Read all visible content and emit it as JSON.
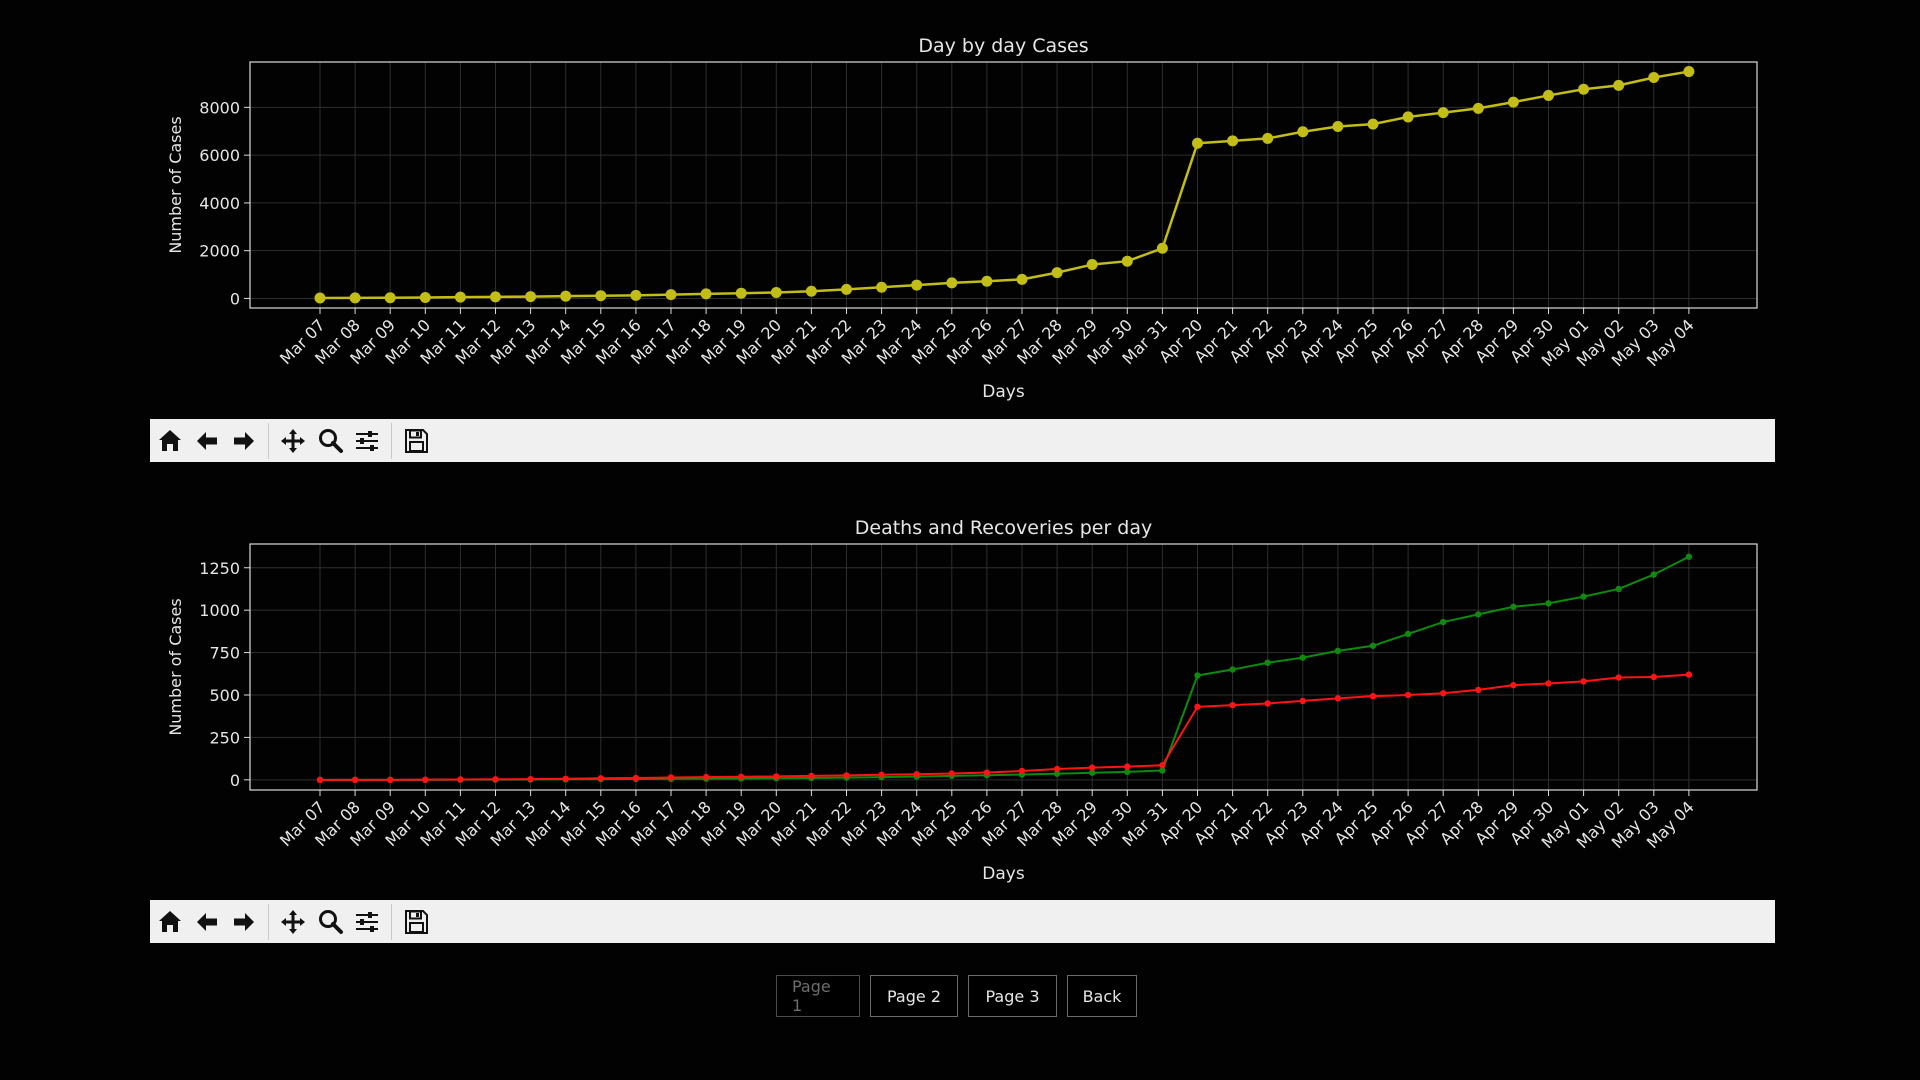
{
  "colors": {
    "background": "#020202",
    "axes_frame": "#dcdcdc",
    "grid": "#2e2e2e",
    "text": "#e6e6e6",
    "cases_series": "#c2bd17",
    "deaths_series": "#ff1414",
    "recoveries_series": "#0e8a0e",
    "toolbar_bg": "#f0f0f0"
  },
  "toolbar": {
    "buttons": [
      {
        "name": "home",
        "icon": "home-icon"
      },
      {
        "name": "back",
        "icon": "arrow-left-icon"
      },
      {
        "name": "forward",
        "icon": "arrow-right-icon"
      },
      {
        "name": "pan",
        "icon": "move-arrows-icon"
      },
      {
        "name": "zoom",
        "icon": "magnifier-icon"
      },
      {
        "name": "configure",
        "icon": "sliders-icon"
      },
      {
        "name": "save",
        "icon": "floppy-disk-icon"
      }
    ]
  },
  "pager": {
    "page1": "Page 1",
    "page2": "Page 2",
    "page3": "Page 3",
    "back": "Back",
    "active": "page1"
  },
  "chart_data": [
    {
      "type": "line",
      "title": "Day by day Cases",
      "xlabel": "Days",
      "ylabel": "Number of Cases",
      "grid": true,
      "ylim": [
        -400,
        9900
      ],
      "yticks": [
        0,
        2000,
        4000,
        6000,
        8000
      ],
      "categories": [
        "Mar 07",
        "Mar 08",
        "Mar 09",
        "Mar 10",
        "Mar 11",
        "Mar 12",
        "Mar 13",
        "Mar 14",
        "Mar 15",
        "Mar 16",
        "Mar 17",
        "Mar 18",
        "Mar 19",
        "Mar 20",
        "Mar 21",
        "Mar 22",
        "Mar 23",
        "Mar 24",
        "Mar 25",
        "Mar 26",
        "Mar 27",
        "Mar 28",
        "Mar 29",
        "Mar 30",
        "Mar 31",
        "Apr 20",
        "Apr 21",
        "Apr 22",
        "Apr 23",
        "Apr 24",
        "Apr 25",
        "Apr 26",
        "Apr 27",
        "Apr 28",
        "Apr 29",
        "Apr 30",
        "May 01",
        "May 02",
        "May 03",
        "May 04"
      ],
      "series": [
        {
          "color": "#c2bd17",
          "marker": "circle",
          "values": [
            20,
            25,
            30,
            40,
            55,
            65,
            75,
            95,
            115,
            130,
            160,
            190,
            220,
            250,
            300,
            380,
            470,
            560,
            650,
            720,
            800,
            1080,
            1420,
            1560,
            2100,
            6500,
            6600,
            6700,
            6980,
            7200,
            7300,
            7600,
            7780,
            7960,
            8220,
            8500,
            8760,
            8920,
            9250,
            9500
          ]
        }
      ]
    },
    {
      "type": "line",
      "title": "Deaths and Recoveries per day",
      "xlabel": "Days",
      "ylabel": "Number of Cases",
      "grid": true,
      "ylim": [
        -60,
        1390
      ],
      "yticks": [
        0,
        250,
        500,
        750,
        1000,
        1250
      ],
      "categories": [
        "Mar 07",
        "Mar 08",
        "Mar 09",
        "Mar 10",
        "Mar 11",
        "Mar 12",
        "Mar 13",
        "Mar 14",
        "Mar 15",
        "Mar 16",
        "Mar 17",
        "Mar 18",
        "Mar 19",
        "Mar 20",
        "Mar 21",
        "Mar 22",
        "Mar 23",
        "Mar 24",
        "Mar 25",
        "Mar 26",
        "Mar 27",
        "Mar 28",
        "Mar 29",
        "Mar 30",
        "Mar 31",
        "Apr 20",
        "Apr 21",
        "Apr 22",
        "Apr 23",
        "Apr 24",
        "Apr 25",
        "Apr 26",
        "Apr 27",
        "Apr 28",
        "Apr 29",
        "Apr 30",
        "May 01",
        "May 02",
        "May 03",
        "May 04"
      ],
      "series": [
        {
          "color": "#0e8a0e",
          "marker": "circle",
          "values": [
            0,
            0,
            0,
            0,
            1,
            1,
            2,
            3,
            4,
            5,
            6,
            7,
            8,
            9,
            11,
            13,
            16,
            19,
            23,
            27,
            31,
            36,
            42,
            47,
            55,
            615,
            650,
            690,
            720,
            760,
            790,
            860,
            930,
            975,
            1020,
            1040,
            1080,
            1125,
            1210,
            1315
          ]
        },
        {
          "color": "#ff1414",
          "marker": "circle",
          "values": [
            0,
            0,
            0,
            1,
            2,
            3,
            4,
            6,
            9,
            11,
            14,
            16,
            18,
            20,
            23,
            26,
            30,
            33,
            37,
            43,
            52,
            64,
            72,
            78,
            86,
            430,
            440,
            450,
            465,
            480,
            493,
            500,
            510,
            530,
            558,
            568,
            580,
            603,
            606,
            620
          ]
        }
      ]
    }
  ]
}
